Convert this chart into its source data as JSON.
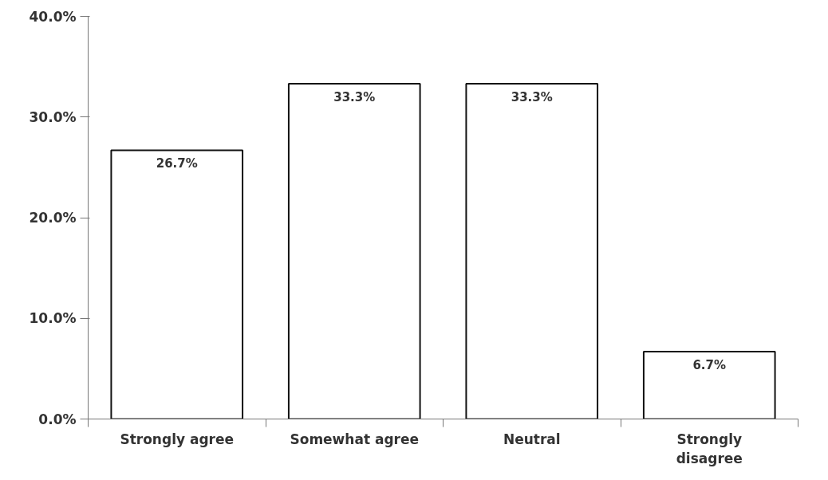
{
  "chart_data": {
    "type": "bar",
    "categories": [
      "Strongly agree",
      "Somewhat agree",
      "Neutral",
      "Strongly disagree"
    ],
    "values": [
      26.7,
      33.3,
      33.3,
      6.7
    ],
    "value_labels": [
      "26.7%",
      "33.3%",
      "33.3%",
      "6.7%"
    ],
    "color": "#ffffff",
    "ylim": [
      0,
      40
    ],
    "yticks": [
      {
        "value": 0,
        "label": "0.0%"
      },
      {
        "value": 10,
        "label": "10.0%"
      },
      {
        "value": 20,
        "label": "20.0%"
      },
      {
        "value": 30,
        "label": "30.0%"
      },
      {
        "value": 40,
        "label": "40.0%"
      }
    ],
    "grid": false
  }
}
